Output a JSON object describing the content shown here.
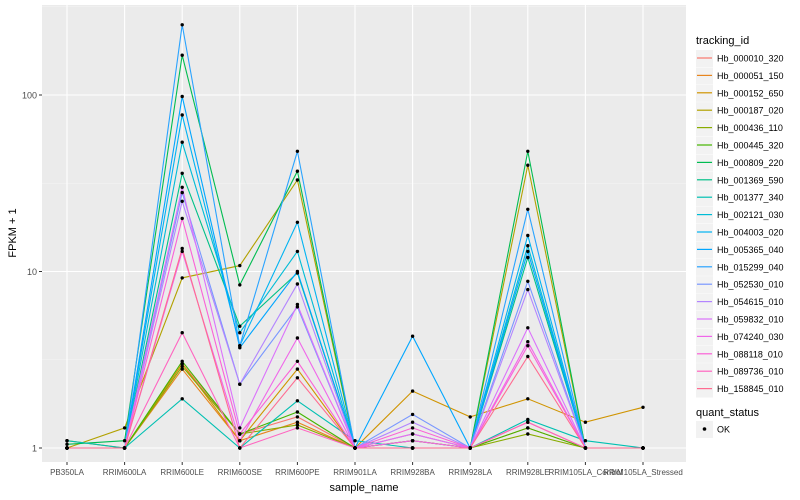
{
  "chart_data": {
    "type": "line",
    "ylabel": "FPKM + 1",
    "xlabel": "sample_name",
    "y_scale": "log10",
    "y_ticks": [
      {
        "value": 1,
        "label": "1"
      },
      {
        "value": 10,
        "label": "10"
      },
      {
        "value": 100,
        "label": "100"
      }
    ],
    "x": [
      "PB350LA",
      "RRIM600LA",
      "RRIM600LE",
      "RRIM600SE",
      "RRIM600PE",
      "RRIM901LA",
      "RRIM928BA",
      "RRIM928LA",
      "RRIM928LE",
      "RRIM105LA_Control",
      "RRIM105LA_Stressed"
    ],
    "legend_title": "tracking_id",
    "legend2_title": "quant_status",
    "legend2_items": [
      "OK"
    ],
    "series": [
      {
        "name": "Hb_000010_320",
        "color": "#F8766D",
        "values": [
          1.0,
          1.0,
          3.0,
          1.2,
          1.5,
          1.0,
          1.2,
          1.0,
          1.4,
          1.0,
          1.0
        ]
      },
      {
        "name": "Hb_000051_150",
        "color": "#E7851E",
        "values": [
          1.0,
          1.0,
          2.8,
          1.1,
          1.4,
          1.0,
          1.1,
          1.0,
          1.3,
          1.0,
          1.0
        ]
      },
      {
        "name": "Hb_000152_650",
        "color": "#D09400",
        "values": [
          1.1,
          1.0,
          3.0,
          1.1,
          2.8,
          1.0,
          2.1,
          1.5,
          1.9,
          1.4,
          1.7
        ]
      },
      {
        "name": "Hb_000187_020",
        "color": "#B2A100",
        "values": [
          1.0,
          1.3,
          9.2,
          10.8,
          33.0,
          1.0,
          1.0,
          1.0,
          40.0,
          1.0,
          1.0
        ]
      },
      {
        "name": "Hb_000436_110",
        "color": "#89AC00",
        "values": [
          1.0,
          1.0,
          2.9,
          1.2,
          1.35,
          1.0,
          1.0,
          1.0,
          1.2,
          1.0,
          1.0
        ]
      },
      {
        "name": "Hb_000445_320",
        "color": "#45B500",
        "values": [
          1.0,
          1.0,
          3.1,
          1.2,
          1.6,
          1.0,
          1.1,
          1.0,
          1.3,
          1.0,
          1.0
        ]
      },
      {
        "name": "Hb_000809_220",
        "color": "#00BC51",
        "values": [
          1.05,
          1.1,
          168.0,
          8.4,
          37.0,
          1.0,
          1.0,
          1.0,
          48.0,
          1.0,
          1.0
        ]
      },
      {
        "name": "Hb_001369_590",
        "color": "#00C087",
        "values": [
          1.0,
          1.0,
          36.0,
          4.9,
          9.8,
          1.0,
          1.0,
          1.0,
          12.0,
          1.0,
          1.0
        ]
      },
      {
        "name": "Hb_001377_340",
        "color": "#00C0B2",
        "values": [
          1.1,
          1.0,
          1.9,
          1.0,
          1.85,
          1.1,
          1.0,
          1.0,
          1.45,
          1.1,
          1.0
        ]
      },
      {
        "name": "Hb_002121_030",
        "color": "#00BCD6",
        "values": [
          1.0,
          1.0,
          54.0,
          4.5,
          13.0,
          1.0,
          1.0,
          1.0,
          14.0,
          1.0,
          1.0
        ]
      },
      {
        "name": "Hb_004003_020",
        "color": "#00B3F2",
        "values": [
          1.0,
          1.0,
          77.0,
          3.8,
          19.0,
          1.0,
          1.0,
          1.0,
          16.0,
          1.0,
          1.0
        ]
      },
      {
        "name": "Hb_005365_040",
        "color": "#00A6FF",
        "values": [
          1.0,
          1.0,
          98.0,
          3.7,
          10.0,
          1.0,
          4.3,
          1.0,
          13.0,
          1.0,
          1.0
        ]
      },
      {
        "name": "Hb_015299_040",
        "color": "#29A3FF",
        "values": [
          1.0,
          1.0,
          250.0,
          3.8,
          48.0,
          1.0,
          1.0,
          1.0,
          22.5,
          1.0,
          1.0
        ]
      },
      {
        "name": "Hb_052530_010",
        "color": "#7997FF",
        "values": [
          1.0,
          1.0,
          28.0,
          2.3,
          6.3,
          1.0,
          1.55,
          1.0,
          8.8,
          1.0,
          1.0
        ]
      },
      {
        "name": "Hb_054615_010",
        "color": "#B385FF",
        "values": [
          1.0,
          1.0,
          25.0,
          2.3,
          8.5,
          1.0,
          1.4,
          1.0,
          7.9,
          1.0,
          1.0
        ]
      },
      {
        "name": "Hb_059832_010",
        "color": "#DB72FB",
        "values": [
          1.0,
          1.0,
          30.0,
          1.3,
          6.5,
          1.0,
          1.2,
          1.0,
          4.8,
          1.0,
          1.0
        ]
      },
      {
        "name": "Hb_074240_030",
        "color": "#F066EA",
        "values": [
          1.0,
          1.0,
          13.0,
          1.1,
          4.2,
          1.0,
          1.1,
          1.0,
          4.0,
          1.0,
          1.0
        ]
      },
      {
        "name": "Hb_088118_010",
        "color": "#FB61D7",
        "values": [
          1.0,
          1.0,
          20.0,
          1.2,
          3.1,
          1.0,
          1.3,
          1.0,
          3.8,
          1.0,
          1.0
        ]
      },
      {
        "name": "Hb_089736_010",
        "color": "#FF65C0",
        "values": [
          1.0,
          1.0,
          4.5,
          1.0,
          1.3,
          1.0,
          1.0,
          1.0,
          1.4,
          1.0,
          1.0
        ]
      },
      {
        "name": "Hb_158845_010",
        "color": "#FF6C91",
        "values": [
          1.0,
          1.0,
          13.5,
          1.0,
          2.5,
          1.0,
          1.0,
          1.0,
          3.3,
          1.0,
          1.0
        ]
      }
    ]
  }
}
